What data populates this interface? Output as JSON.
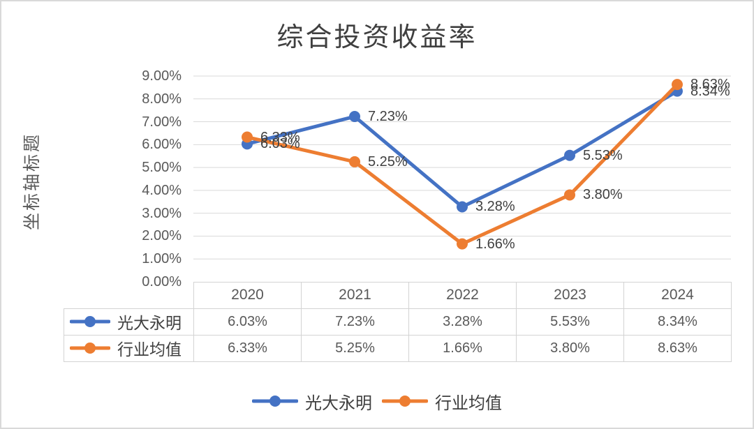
{
  "window": {
    "background": "#FFFFFF",
    "border_color": "#D9D9D9"
  },
  "chart_data": {
    "type": "line",
    "title": "综合投资收益率",
    "y_axis_title": "坐标轴标题",
    "xlabel": "",
    "ylabel": "坐标轴标题",
    "categories": [
      "2020",
      "2021",
      "2022",
      "2023",
      "2024"
    ],
    "series": [
      {
        "name": "光大永明",
        "color": "#4472C4",
        "values": [
          6.03,
          7.23,
          3.28,
          5.53,
          8.34
        ],
        "labels": [
          "6.03%",
          "7.23%",
          "3.28%",
          "5.53%",
          "8.34%"
        ]
      },
      {
        "name": "行业均值",
        "color": "#ED7D31",
        "values": [
          6.33,
          5.25,
          1.66,
          3.8,
          8.63
        ],
        "labels": [
          "6.33%",
          "5.25%",
          "1.66%",
          "3.80%",
          "8.63%"
        ]
      }
    ],
    "ylim": [
      0,
      9
    ],
    "yticks": [
      {
        "value": 9,
        "label": "9.00%"
      },
      {
        "value": 8,
        "label": "8.00%"
      },
      {
        "value": 7,
        "label": "7.00%"
      },
      {
        "value": 6,
        "label": "6.00%"
      },
      {
        "value": 5,
        "label": "5.00%"
      },
      {
        "value": 4,
        "label": "4.00%"
      },
      {
        "value": 3,
        "label": "3.00%"
      },
      {
        "value": 2,
        "label": "2.00%"
      },
      {
        "value": 1,
        "label": "1.00%"
      },
      {
        "value": 0,
        "label": "0.00%"
      }
    ],
    "grid": true,
    "gridline_color": "#D9D9D9",
    "legend_position": "bottom",
    "data_table_shown": true,
    "text_colors": {
      "title": "#3F3F3F",
      "axis": "#595959",
      "data_label": "#404040",
      "table": "#595959"
    }
  }
}
